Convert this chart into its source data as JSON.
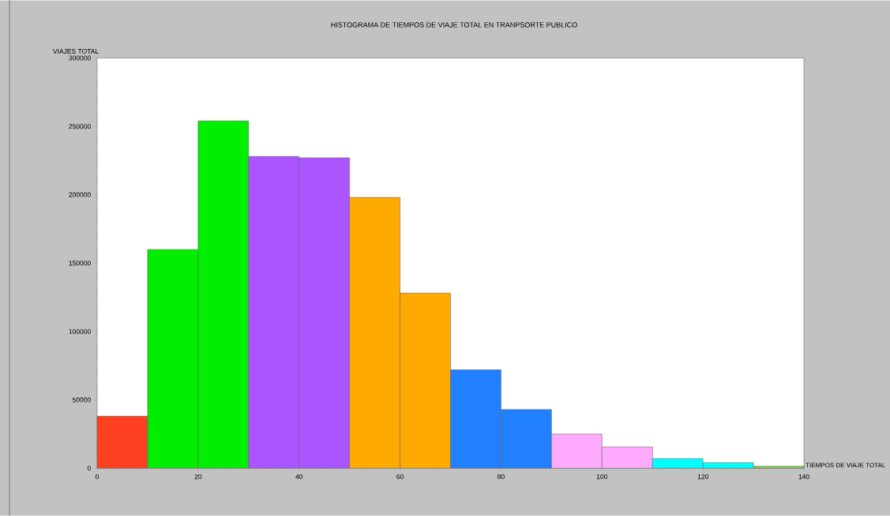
{
  "chart_data": {
    "type": "histogram",
    "title": "HISTOGRAMA DE TIEMPOS DE VIAJE TOTAL EN TRANPSORTE PUBLICO",
    "xlabel": "TIEMPOS DE VIAJE TOTAL",
    "ylabel": "VIAJES TOTAL",
    "bins": [
      0,
      10,
      20,
      30,
      40,
      50,
      60,
      70,
      80,
      90,
      100,
      110,
      120,
      130,
      140
    ],
    "values": [
      38000,
      160000,
      254000,
      228000,
      227000,
      198000,
      128000,
      72000,
      43000,
      25000,
      15500,
      7000,
      4000,
      1500
    ],
    "colors": [
      "#ff4020",
      "#00ee00",
      "#00ee00",
      "#aa55ff",
      "#aa55ff",
      "#ffaa00",
      "#ffaa00",
      "#2080ff",
      "#2080ff",
      "#ffaaff",
      "#ffaaff",
      "#00ffff",
      "#00ffff",
      "#88cc44"
    ],
    "xlim": [
      0,
      140
    ],
    "xticks": [
      0,
      20,
      40,
      60,
      80,
      100,
      120,
      140
    ],
    "ylim": [
      0,
      300000
    ],
    "yticks": [
      0,
      50000,
      100000,
      150000,
      200000,
      250000,
      300000
    ]
  }
}
